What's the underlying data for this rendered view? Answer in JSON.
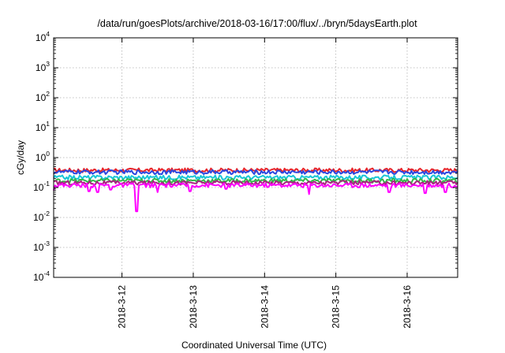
{
  "chart_data": {
    "type": "line",
    "title": "/data/run/goesPlots/archive/2018-03-16/17:00/flux/../bryn/5daysEarth.plot",
    "xlabel": "Coordinated Universal Time (UTC)",
    "ylabel": "cGy/day",
    "yscale": "log",
    "ylim": [
      0.0001,
      10000
    ],
    "yticks": [
      {
        "base": "10",
        "exp": "-4"
      },
      {
        "base": "10",
        "exp": "-3"
      },
      {
        "base": "10",
        "exp": "-2"
      },
      {
        "base": "10",
        "exp": "-1"
      },
      {
        "base": "10",
        "exp": "0"
      },
      {
        "base": "10",
        "exp": "1"
      },
      {
        "base": "10",
        "exp": "2"
      },
      {
        "base": "10",
        "exp": "3"
      },
      {
        "base": "10",
        "exp": "4"
      }
    ],
    "xlim": [
      "2018-03-11T01:00",
      "2018-03-16T17:00"
    ],
    "xticks": [
      "2018-3-12",
      "2018-3-13",
      "2018-3-14",
      "2018-3-15",
      "2018-3-16"
    ],
    "grid": true,
    "series": [
      {
        "color": "#e8262b",
        "base_value": 0.38,
        "dips": []
      },
      {
        "color": "#2b47e0",
        "base_value": 0.33,
        "dips": []
      },
      {
        "color": "#19c6d6",
        "base_value": 0.22,
        "dips": []
      },
      {
        "color": "#35b84a",
        "base_value": 0.17,
        "dips": []
      },
      {
        "color": "#a8237f",
        "base_value": 0.145,
        "dips": []
      },
      {
        "color": "#ff00ff",
        "base_value": 0.12,
        "dips": [
          {
            "t": "2018-03-11T01:00",
            "v": 0.08
          },
          {
            "t": "2018-03-11T13:00",
            "v": 0.075
          },
          {
            "t": "2018-03-11T16:00",
            "v": 0.07
          },
          {
            "t": "2018-03-11T20:00",
            "v": 0.085
          },
          {
            "t": "2018-03-12T05:00",
            "v": 0.016
          },
          {
            "t": "2018-03-12T12:00",
            "v": 0.07
          },
          {
            "t": "2018-03-12T23:00",
            "v": 0.075
          },
          {
            "t": "2018-03-13T11:00",
            "v": 0.09
          },
          {
            "t": "2018-03-14T15:00",
            "v": 0.06
          },
          {
            "t": "2018-03-15T18:00",
            "v": 0.07
          },
          {
            "t": "2018-03-16T06:00",
            "v": 0.065
          },
          {
            "t": "2018-03-16T13:00",
            "v": 0.07
          }
        ]
      }
    ]
  }
}
